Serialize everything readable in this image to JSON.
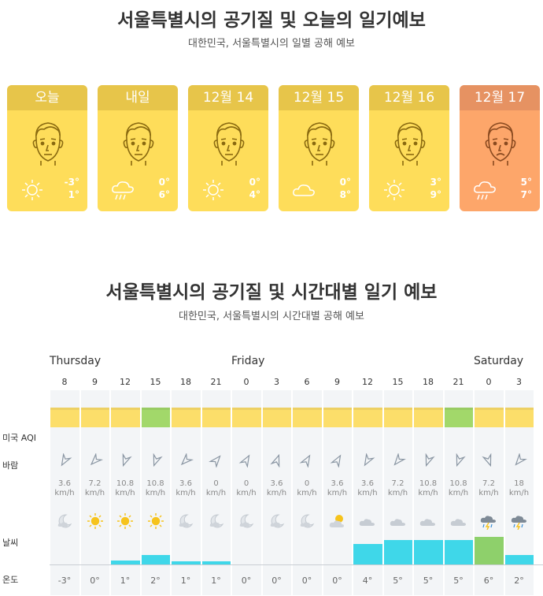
{
  "daily": {
    "title": "서울특별시의 공기질 및 오늘의 일기예보",
    "subtitle": "대한민국, 서울특별시의 일별 공해 예보",
    "days": [
      {
        "label": "오늘",
        "max": "-3°",
        "min": "1°",
        "weather": "sun-icon",
        "face": "neutral-face-icon",
        "aqi": "moderate"
      },
      {
        "label": "내일",
        "max": "0°",
        "min": "6°",
        "weather": "rain-cloud-icon",
        "face": "neutral-face-icon",
        "aqi": "moderate"
      },
      {
        "label": "12월 14",
        "max": "0°",
        "min": "4°",
        "weather": "sun-icon",
        "face": "neutral-face-icon",
        "aqi": "moderate"
      },
      {
        "label": "12월 15",
        "max": "0°",
        "min": "8°",
        "weather": "cloud-icon",
        "face": "neutral-face-icon",
        "aqi": "moderate"
      },
      {
        "label": "12월 16",
        "max": "3°",
        "min": "9°",
        "weather": "sun-icon",
        "face": "neutral-face-icon",
        "aqi": "moderate"
      },
      {
        "label": "12월 17",
        "max": "5°",
        "min": "7°",
        "weather": "rain-cloud-icon",
        "face": "sad-face-icon",
        "aqi": "unhealthy-sensitive"
      }
    ]
  },
  "hourly": {
    "title": "서울특별시의 공기질 및 시간대별 일기 예보",
    "subtitle": "대한민국, 서울특별시의 시간대별 공해 예보",
    "days": [
      "Thursday",
      "Friday",
      "Saturday"
    ],
    "row_labels": {
      "aqi": "미국 AQI",
      "wind": "바람",
      "weather": "날씨",
      "temp": "온도"
    },
    "hours": [
      "8",
      "9",
      "12",
      "15",
      "18",
      "21",
      "0",
      "3",
      "6",
      "9",
      "12",
      "15",
      "18",
      "21",
      "0",
      "3"
    ],
    "aqi_level": [
      "moderate",
      "moderate",
      "moderate",
      "good",
      "moderate",
      "moderate",
      "moderate",
      "moderate",
      "moderate",
      "moderate",
      "moderate",
      "moderate",
      "moderate",
      "good",
      "moderate",
      "moderate"
    ],
    "wind_speed": [
      "3.6",
      "7.2",
      "10.8",
      "10.8",
      "3.6",
      "0",
      "0",
      "3.6",
      "0",
      "3.6",
      "3.6",
      "7.2",
      "10.8",
      "10.8",
      "7.2",
      "18"
    ],
    "wind_unit": "km/h",
    "weather": [
      "moon-cloud-icon",
      "sun-icon",
      "sun-icon",
      "sun-icon",
      "moon-cloud-icon",
      "moon-cloud-icon",
      "moon-cloud-icon",
      "moon-cloud-icon",
      "moon-cloud-icon",
      "sun-cloud-icon",
      "cloud-icon",
      "cloud-icon",
      "cloud-icon",
      "cloud-icon",
      "rain-thunder-icon",
      "rain-thunder-icon"
    ],
    "temps": [
      "-3°",
      "0°",
      "1°",
      "2°",
      "1°",
      "1°",
      "0°",
      "0°",
      "0°",
      "0°",
      "4°",
      "5°",
      "5°",
      "5°",
      "6°",
      "2°"
    ],
    "precip_level": [
      0,
      0,
      0.1,
      0.22,
      0.09,
      0.09,
      0,
      0,
      0,
      0,
      0.45,
      0.53,
      0.53,
      0.53,
      0.6,
      0.22
    ],
    "colors": {
      "moderate": "#fcde6a",
      "good": "#a2d86a",
      "unhealthy-sensitive": "#f6a672",
      "rain": "#3fd7e9"
    }
  }
}
